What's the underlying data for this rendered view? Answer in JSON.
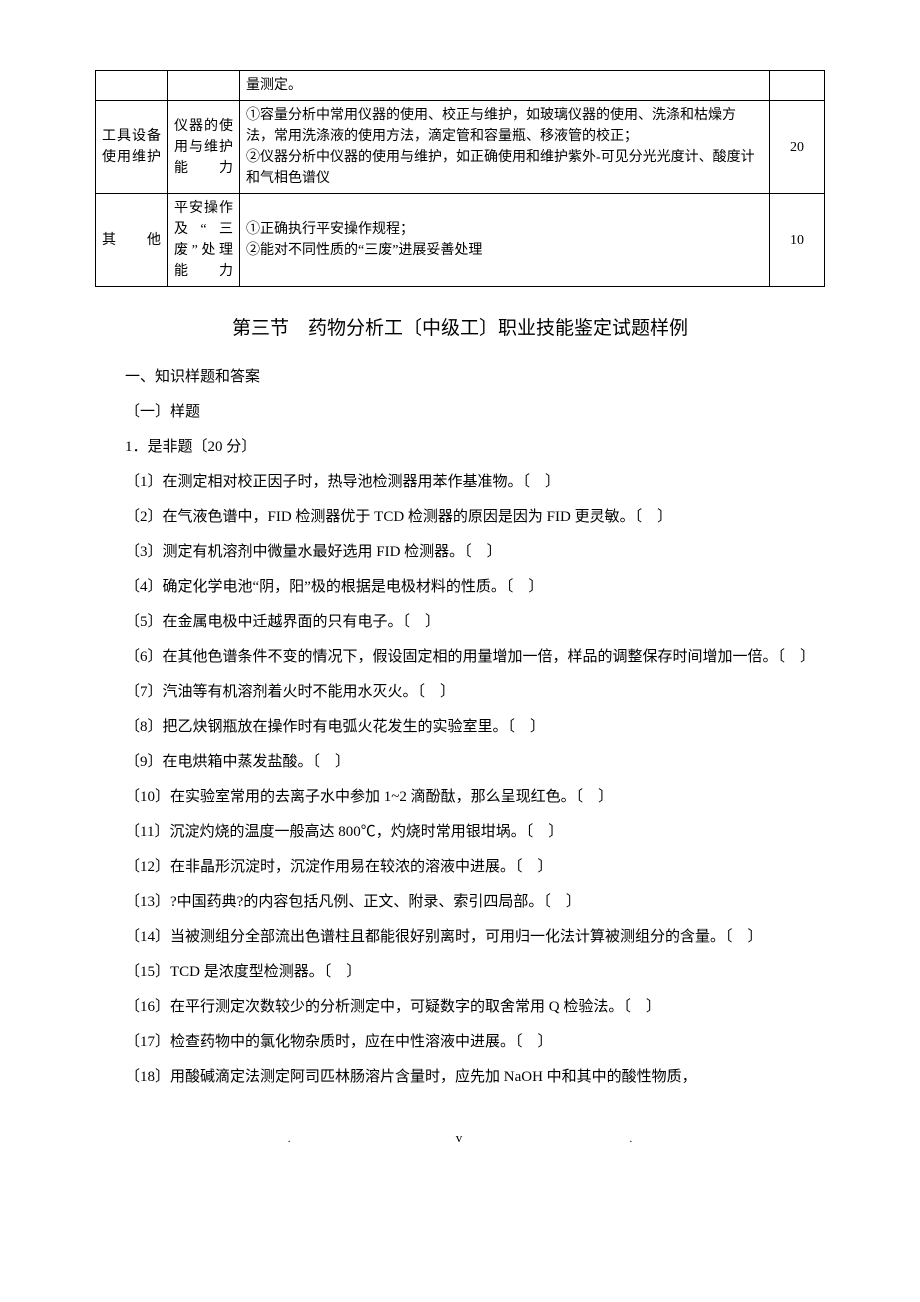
{
  "table": {
    "rows": [
      {
        "col1": "",
        "col2": "",
        "col3": "量测定。",
        "col4": ""
      },
      {
        "col1": "工具设备使用维护",
        "col2": "仪器的使用与维护能力",
        "col3": "①容量分析中常用仪器的使用、校正与维护，如玻璃仪器的使用、洗涤和枯燥方法，常用洗涤液的使用方法，滴定管和容量瓶、移液管的校正；\n②仪器分析中仪器的使用与维护，如正确使用和维护紫外-可见分光光度计、酸度计和气相色谱仪",
        "col4": "20"
      },
      {
        "col1": "其他",
        "col2": "平安操作及“三废”处理能力",
        "col3": "①正确执行平安操作规程；\n②能对不同性质的“三废”进展妥善处理",
        "col4": "10"
      }
    ]
  },
  "section_title": "第三节　药物分析工〔中级工〕职业技能鉴定试题样例",
  "heading1": "一、知识样题和答案",
  "subheading1": "〔一〕样题",
  "qheading": "1．是非题〔20 分〕",
  "questions": [
    "〔1〕在测定相对校正因子时，热导池检测器用苯作基准物。〔　〕",
    "〔2〕在气液色谱中，FID 检测器优于 TCD 检测器的原因是因为 FID 更灵敏。〔　〕",
    "〔3〕测定有机溶剂中微量水最好选用 FID 检测器。〔　〕",
    "〔4〕确定化学电池“阴，阳”极的根据是电极材料的性质。〔　〕",
    "〔5〕在金属电极中迁越界面的只有电子。〔　〕",
    "〔6〕在其他色谱条件不变的情况下，假设固定相的用量增加一倍，样品的调整保存时间增加一倍。〔　〕",
    "〔7〕汽油等有机溶剂着火时不能用水灭火。〔　〕",
    "〔8〕把乙炔钢瓶放在操作时有电弧火花发生的实验室里。〔　〕",
    "〔9〕在电烘箱中蒸发盐酸。〔　〕",
    "〔10〕在实验室常用的去离子水中参加 1~2 滴酚酞，那么呈现红色。〔　〕",
    "〔11〕沉淀灼烧的温度一般高达 800℃，灼烧时常用银坩埚。〔　〕",
    "〔12〕在非晶形沉淀时，沉淀作用易在较浓的溶液中进展。〔　〕",
    "〔13〕?中国药典?的内容包括凡例、正文、附录、索引四局部。〔　〕",
    "〔14〕当被测组分全部流出色谱柱且都能很好别离时，可用归一化法计算被测组分的含量。〔　〕",
    "〔15〕TCD 是浓度型检测器。〔　〕",
    "〔16〕在平行测定次数较少的分析测定中，可疑数字的取舍常用 Q 检验法。〔　〕",
    "〔17〕检查药物中的氯化物杂质时，应在中性溶液中进展。〔　〕",
    "〔18〕用酸碱滴定法测定阿司匹林肠溶片含量时，应先加 NaOH 中和其中的酸性物质，"
  ],
  "footer": {
    "page": "v"
  }
}
